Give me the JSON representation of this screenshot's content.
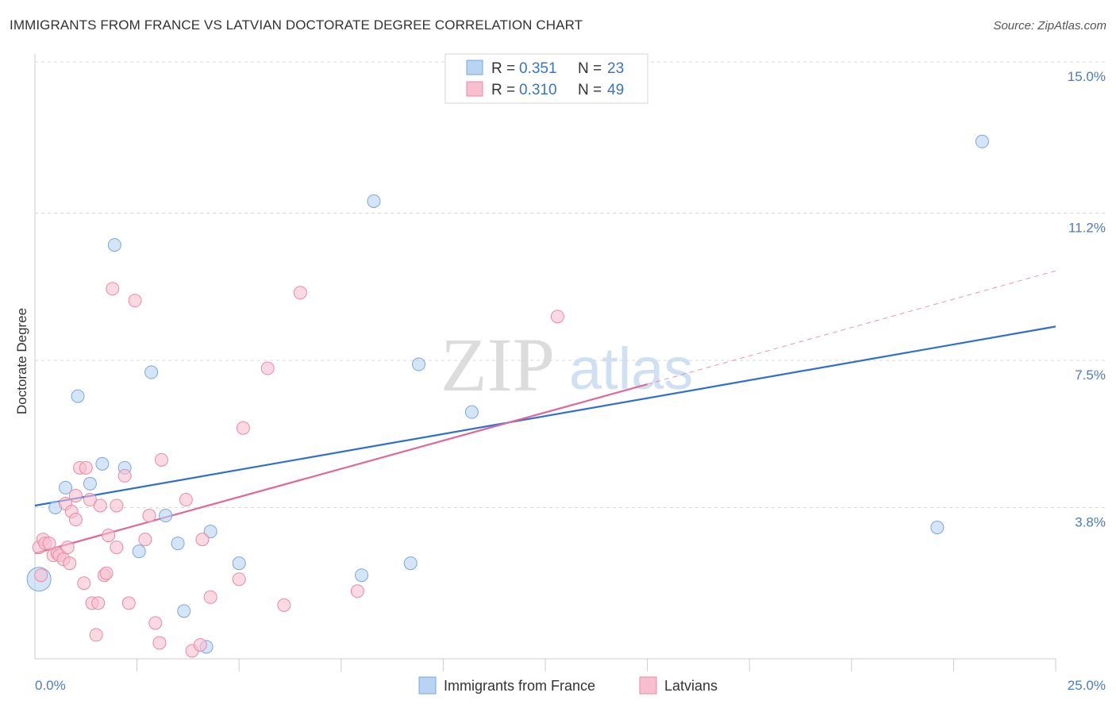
{
  "title": "IMMIGRANTS FROM FRANCE VS LATVIAN DOCTORATE DEGREE CORRELATION CHART",
  "source": "Source: ZipAtlas.com",
  "watermark": {
    "zip": "ZIP",
    "atlas": "atlas"
  },
  "colors": {
    "blue_fill": "#b8d3f3",
    "blue_stroke": "#7aa7df",
    "blue_line": "#2f6fcf",
    "pink_fill": "#f7bfd0",
    "pink_stroke": "#e98aa8",
    "pink_line": "#e0679a",
    "grid": "#d8d8d8",
    "axis_label": "#4a7cc7"
  },
  "legend": {
    "rows": [
      {
        "r_label": "R =",
        "r_value": "0.351",
        "n_label": "N =",
        "n_value": "23"
      },
      {
        "r_label": "R =",
        "r_value": "0.310",
        "n_label": "N =",
        "n_value": "49"
      }
    ]
  },
  "chart_data": {
    "type": "scatter",
    "title": "IMMIGRANTS FROM FRANCE VS LATVIAN DOCTORATE DEGREE CORRELATION CHART",
    "xlabel": "",
    "ylabel": "Doctorate Degree",
    "xlim": [
      0,
      25
    ],
    "ylim": [
      0,
      15.5
    ],
    "x_tick_labels": [
      "0.0%",
      "25.0%"
    ],
    "y_ticks": [
      3.8,
      7.5,
      11.2,
      15.0
    ],
    "y_tick_labels": [
      "3.8%",
      "7.5%",
      "11.2%",
      "15.0%"
    ],
    "x_minor_ticks": [
      2.5,
      5,
      7.5,
      10,
      12.5,
      15,
      17.5,
      20,
      22.5,
      25
    ],
    "grid": true,
    "legend_position": "top-center",
    "series": [
      {
        "name": "Immigrants from France",
        "color_key": "blue",
        "r": 0.351,
        "n": 23,
        "points": [
          [
            0.1,
            2.0,
            "large"
          ],
          [
            0.5,
            3.8
          ],
          [
            0.75,
            4.3
          ],
          [
            1.05,
            6.6
          ],
          [
            1.35,
            4.4
          ],
          [
            1.65,
            4.9
          ],
          [
            1.95,
            10.4
          ],
          [
            2.2,
            4.8
          ],
          [
            2.55,
            2.7
          ],
          [
            2.85,
            7.2
          ],
          [
            3.2,
            3.6
          ],
          [
            3.5,
            2.9
          ],
          [
            3.65,
            1.2
          ],
          [
            4.2,
            0.3
          ],
          [
            4.3,
            3.2
          ],
          [
            5.0,
            2.4
          ],
          [
            8.0,
            2.1
          ],
          [
            8.3,
            11.5
          ],
          [
            9.2,
            2.4
          ],
          [
            9.4,
            7.4
          ],
          [
            10.7,
            6.2
          ],
          [
            22.1,
            3.3
          ],
          [
            23.2,
            13.0
          ]
        ],
        "trend": {
          "x0": 0,
          "y0": 3.85,
          "x1": 25,
          "y1": 8.35,
          "dash_to_x": null
        }
      },
      {
        "name": "Latvians",
        "color_key": "pink",
        "r": 0.31,
        "n": 49,
        "points": [
          [
            0.1,
            2.8
          ],
          [
            0.15,
            2.1
          ],
          [
            0.2,
            3.0
          ],
          [
            0.25,
            2.9
          ],
          [
            0.35,
            2.9
          ],
          [
            0.45,
            2.6
          ],
          [
            0.55,
            2.65
          ],
          [
            0.6,
            2.6
          ],
          [
            0.7,
            2.5
          ],
          [
            0.75,
            3.9
          ],
          [
            0.8,
            2.8
          ],
          [
            0.85,
            2.4
          ],
          [
            0.9,
            3.7
          ],
          [
            1.0,
            4.1
          ],
          [
            1.0,
            3.5
          ],
          [
            1.1,
            4.8
          ],
          [
            1.2,
            1.9
          ],
          [
            1.25,
            4.8
          ],
          [
            1.35,
            4.0
          ],
          [
            1.4,
            1.4
          ],
          [
            1.5,
            0.6
          ],
          [
            1.55,
            1.4
          ],
          [
            1.6,
            3.85
          ],
          [
            1.7,
            2.1
          ],
          [
            1.75,
            2.15
          ],
          [
            1.8,
            3.1
          ],
          [
            1.9,
            9.3
          ],
          [
            2.0,
            3.85
          ],
          [
            2.0,
            2.8
          ],
          [
            2.2,
            4.6
          ],
          [
            2.3,
            1.4
          ],
          [
            2.45,
            9.0
          ],
          [
            2.7,
            3.0
          ],
          [
            2.8,
            3.6
          ],
          [
            2.95,
            0.9
          ],
          [
            3.05,
            0.4
          ],
          [
            3.1,
            5.0
          ],
          [
            3.7,
            4.0
          ],
          [
            3.85,
            0.2
          ],
          [
            4.05,
            0.35
          ],
          [
            4.1,
            3.0
          ],
          [
            4.3,
            1.55
          ],
          [
            5.0,
            2.0
          ],
          [
            5.1,
            5.8
          ],
          [
            5.7,
            7.3
          ],
          [
            6.1,
            1.35
          ],
          [
            6.5,
            9.2
          ],
          [
            7.9,
            1.7
          ],
          [
            12.8,
            8.6
          ]
        ],
        "trend": {
          "x0": 0,
          "y0": 2.65,
          "x1": 15,
          "y1": 6.9,
          "dash_to_x": 25,
          "dash_to_y": 9.75
        }
      }
    ]
  },
  "bottom_legend": [
    {
      "label": "Immigrants from France",
      "color_key": "blue"
    },
    {
      "label": "Latvians",
      "color_key": "pink"
    }
  ]
}
